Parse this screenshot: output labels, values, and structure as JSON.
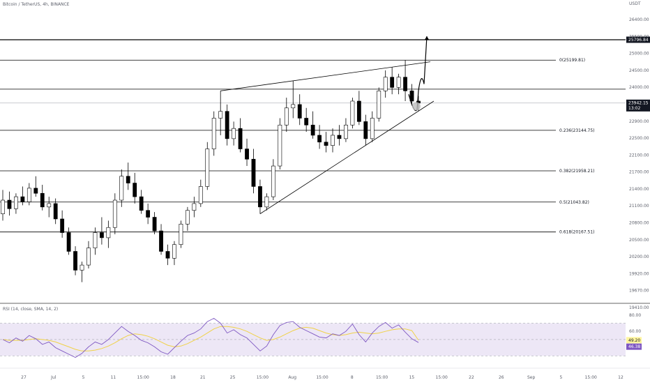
{
  "header": {
    "symbol_title": "Bitcoin / TetherUS, 4h, BINANCE",
    "currency_unit": "USDT"
  },
  "colors": {
    "up_candle": "#ffffff",
    "down_candle": "#000000",
    "wick": "#000000",
    "fib_line": "#000000",
    "rsi_line": "#7e57c2",
    "rsi_sma": "#f0d247",
    "rsi_band": "#ede7f6",
    "current_price_tag": "#131722",
    "rsi_value_tag": "#7e57c2",
    "rsi_sma_tag": "#fff59d"
  },
  "chart_data": {
    "type": "candlestick",
    "title": "Bitcoin / TetherUS, 4h, BINANCE",
    "ylim": [
      18120,
      26960
    ],
    "price_ticks": [
      "26400.00",
      "25500.00",
      "25000.00",
      "24500.00",
      "24000.00",
      "23300.00",
      "22900.00",
      "22500.00",
      "22100.00",
      "21700.00",
      "21400.00",
      "21100.00",
      "20800.00",
      "20500.00",
      "20200.00",
      "19920.00",
      "19670.00",
      "19410.00"
    ],
    "x_ticks": [
      "27",
      "Jul",
      "5",
      "11",
      "15:00",
      "18",
      "21",
      "25",
      "15:00",
      "Aug",
      "15:00",
      "8",
      "15:00",
      "15",
      "15:00",
      "22",
      "26",
      "Sep",
      "5",
      "15:00",
      "12"
    ],
    "fib_levels": [
      {
        "label": "0(25199.81)",
        "value": 25199.81
      },
      {
        "label": "0.236(23144.75)",
        "value": 23144.75
      },
      {
        "label": "0.382(21958.21)",
        "value": 21958.21
      },
      {
        "label": "0.5(21043.82)",
        "value": 21043.82
      },
      {
        "label": "0.618(20167.51)",
        "value": 20167.51
      }
    ],
    "horizontal_lines": [
      25796.84,
      24350,
      23942.15
    ],
    "current_price": {
      "value": 23942.15,
      "label": "23942.15",
      "countdown": "13:02"
    },
    "marked_level": {
      "label": "25796.84",
      "value": 25796.84
    },
    "candles": [
      {
        "o": 20700,
        "h": 21400,
        "l": 20500,
        "c": 21100
      },
      {
        "o": 21100,
        "h": 21350,
        "l": 20650,
        "c": 20850
      },
      {
        "o": 20850,
        "h": 21300,
        "l": 20700,
        "c": 21200
      },
      {
        "o": 21200,
        "h": 21500,
        "l": 20950,
        "c": 21050
      },
      {
        "o": 21050,
        "h": 21600,
        "l": 20950,
        "c": 21450
      },
      {
        "o": 21450,
        "h": 21800,
        "l": 21200,
        "c": 21300
      },
      {
        "o": 21300,
        "h": 21550,
        "l": 20800,
        "c": 20900
      },
      {
        "o": 20900,
        "h": 21200,
        "l": 20600,
        "c": 21000
      },
      {
        "o": 21000,
        "h": 21150,
        "l": 20400,
        "c": 20550
      },
      {
        "o": 20550,
        "h": 20800,
        "l": 20000,
        "c": 20150
      },
      {
        "o": 20150,
        "h": 20300,
        "l": 19500,
        "c": 19600
      },
      {
        "o": 19600,
        "h": 19750,
        "l": 18900,
        "c": 19050
      },
      {
        "o": 19050,
        "h": 19300,
        "l": 18700,
        "c": 19200
      },
      {
        "o": 19200,
        "h": 19900,
        "l": 19100,
        "c": 19700
      },
      {
        "o": 19700,
        "h": 20300,
        "l": 19500,
        "c": 20150
      },
      {
        "o": 20150,
        "h": 20600,
        "l": 19800,
        "c": 20000
      },
      {
        "o": 20000,
        "h": 20500,
        "l": 19700,
        "c": 20300
      },
      {
        "o": 20300,
        "h": 21300,
        "l": 20100,
        "c": 21100
      },
      {
        "o": 21100,
        "h": 22000,
        "l": 20900,
        "c": 21800
      },
      {
        "o": 21800,
        "h": 22200,
        "l": 21400,
        "c": 21600
      },
      {
        "o": 21600,
        "h": 21900,
        "l": 21000,
        "c": 21200
      },
      {
        "o": 21200,
        "h": 21400,
        "l": 20700,
        "c": 20800
      },
      {
        "o": 20800,
        "h": 21000,
        "l": 20400,
        "c": 20600
      },
      {
        "o": 20600,
        "h": 20750,
        "l": 20100,
        "c": 20200
      },
      {
        "o": 20200,
        "h": 20400,
        "l": 19500,
        "c": 19600
      },
      {
        "o": 19600,
        "h": 19800,
        "l": 19200,
        "c": 19400
      },
      {
        "o": 19400,
        "h": 19900,
        "l": 19200,
        "c": 19800
      },
      {
        "o": 19800,
        "h": 20500,
        "l": 19700,
        "c": 20400
      },
      {
        "o": 20400,
        "h": 20900,
        "l": 20200,
        "c": 20800
      },
      {
        "o": 20800,
        "h": 21200,
        "l": 20600,
        "c": 21000
      },
      {
        "o": 21000,
        "h": 21700,
        "l": 20900,
        "c": 21500
      },
      {
        "o": 21500,
        "h": 22800,
        "l": 21400,
        "c": 22600
      },
      {
        "o": 22600,
        "h": 23700,
        "l": 22400,
        "c": 23500
      },
      {
        "o": 23500,
        "h": 24300,
        "l": 23000,
        "c": 23700
      },
      {
        "o": 23700,
        "h": 23900,
        "l": 22700,
        "c": 22900
      },
      {
        "o": 22900,
        "h": 23400,
        "l": 22700,
        "c": 23200
      },
      {
        "o": 23200,
        "h": 23500,
        "l": 22500,
        "c": 22600
      },
      {
        "o": 22600,
        "h": 22900,
        "l": 22100,
        "c": 22300
      },
      {
        "o": 22300,
        "h": 22600,
        "l": 21300,
        "c": 21500
      },
      {
        "o": 21500,
        "h": 21700,
        "l": 20700,
        "c": 20900
      },
      {
        "o": 20900,
        "h": 21300,
        "l": 20800,
        "c": 21200
      },
      {
        "o": 21200,
        "h": 22300,
        "l": 21100,
        "c": 22100
      },
      {
        "o": 22100,
        "h": 23500,
        "l": 22000,
        "c": 23300
      },
      {
        "o": 23300,
        "h": 24100,
        "l": 23100,
        "c": 23800
      },
      {
        "o": 23800,
        "h": 24600,
        "l": 23500,
        "c": 23900
      },
      {
        "o": 23900,
        "h": 24200,
        "l": 23300,
        "c": 23500
      },
      {
        "o": 23500,
        "h": 23800,
        "l": 23100,
        "c": 23300
      },
      {
        "o": 23300,
        "h": 23700,
        "l": 22900,
        "c": 23000
      },
      {
        "o": 23000,
        "h": 23300,
        "l": 22600,
        "c": 22800
      },
      {
        "o": 22800,
        "h": 23100,
        "l": 22500,
        "c": 22700
      },
      {
        "o": 22700,
        "h": 23200,
        "l": 22500,
        "c": 23000
      },
      {
        "o": 23000,
        "h": 23300,
        "l": 22700,
        "c": 22900
      },
      {
        "o": 22900,
        "h": 23500,
        "l": 22800,
        "c": 23300
      },
      {
        "o": 23300,
        "h": 24100,
        "l": 23200,
        "c": 24000
      },
      {
        "o": 24000,
        "h": 24300,
        "l": 23300,
        "c": 23400
      },
      {
        "o": 23400,
        "h": 23600,
        "l": 22700,
        "c": 22900
      },
      {
        "o": 22900,
        "h": 23700,
        "l": 22800,
        "c": 23500
      },
      {
        "o": 23500,
        "h": 24400,
        "l": 23400,
        "c": 24300
      },
      {
        "o": 24300,
        "h": 24900,
        "l": 24100,
        "c": 24700
      },
      {
        "o": 24700,
        "h": 25000,
        "l": 24200,
        "c": 24400
      },
      {
        "o": 24400,
        "h": 24800,
        "l": 24200,
        "c": 24700
      },
      {
        "o": 24700,
        "h": 25200,
        "l": 24000,
        "c": 24300
      },
      {
        "o": 24300,
        "h": 24500,
        "l": 23900,
        "c": 24000
      },
      {
        "o": 24000,
        "h": 24150,
        "l": 23700,
        "c": 23942
      }
    ]
  },
  "rsi_panel": {
    "label": "RSI (14, close, SMA, 14, 2)",
    "ylim": [
      20,
      85
    ],
    "ticks": [
      "80.00",
      "60.00",
      "40.00"
    ],
    "upper_band": 70,
    "lower_band": 30,
    "mid": 50,
    "rsi_value": "46.38",
    "sma_value": "49.20",
    "rsi": [
      50,
      46,
      52,
      48,
      55,
      51,
      44,
      47,
      40,
      36,
      32,
      28,
      33,
      41,
      47,
      44,
      50,
      58,
      66,
      60,
      55,
      49,
      46,
      41,
      35,
      32,
      40,
      48,
      55,
      58,
      63,
      72,
      76,
      70,
      58,
      62,
      56,
      52,
      44,
      36,
      42,
      56,
      67,
      71,
      72,
      65,
      61,
      57,
      53,
      52,
      57,
      55,
      60,
      69,
      56,
      47,
      58,
      66,
      71,
      64,
      68,
      59,
      51,
      46.38
    ],
    "sma": [
      50,
      49,
      49,
      49,
      50,
      51,
      50,
      49,
      47,
      44,
      41,
      38,
      36,
      36,
      37,
      39,
      42,
      46,
      51,
      55,
      57,
      56,
      54,
      51,
      47,
      43,
      41,
      42,
      45,
      49,
      53,
      58,
      63,
      66,
      66,
      65,
      63,
      60,
      56,
      52,
      49,
      50,
      53,
      57,
      61,
      64,
      65,
      64,
      61,
      58,
      56,
      55,
      56,
      58,
      59,
      58,
      57,
      58,
      60,
      62,
      63,
      63,
      61,
      49.2
    ]
  }
}
